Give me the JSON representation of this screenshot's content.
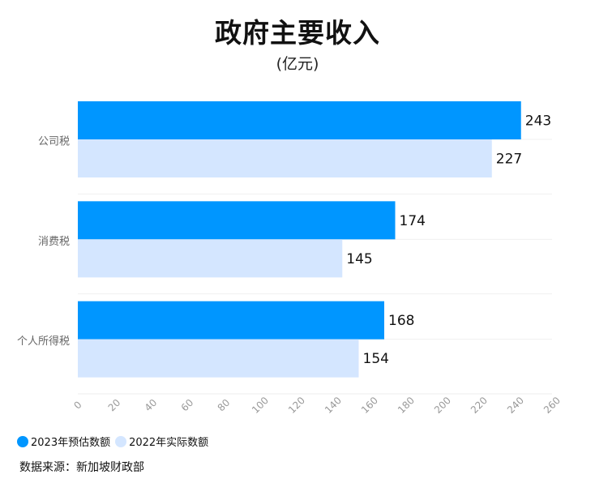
{
  "chart_data": {
    "type": "bar",
    "orientation": "horizontal",
    "title": "政府主要收入",
    "subtitle": "(亿元)",
    "categories": [
      "公司税",
      "消费税",
      "个人所得税"
    ],
    "series": [
      {
        "name": "2023年预估数额",
        "color": "#0096ff",
        "values": [
          243,
          174,
          168
        ]
      },
      {
        "name": "2022年实际数额",
        "color": "#d4e6ff",
        "values": [
          227,
          145,
          154
        ]
      }
    ],
    "xlim": [
      0,
      260
    ],
    "xticks": [
      "0",
      "20",
      "40",
      "60",
      "80",
      "100",
      "120",
      "140",
      "160",
      "180",
      "200",
      "220",
      "240",
      "260"
    ],
    "legend_position": "bottom-left"
  },
  "source": "数据来源：新加坡财政部"
}
